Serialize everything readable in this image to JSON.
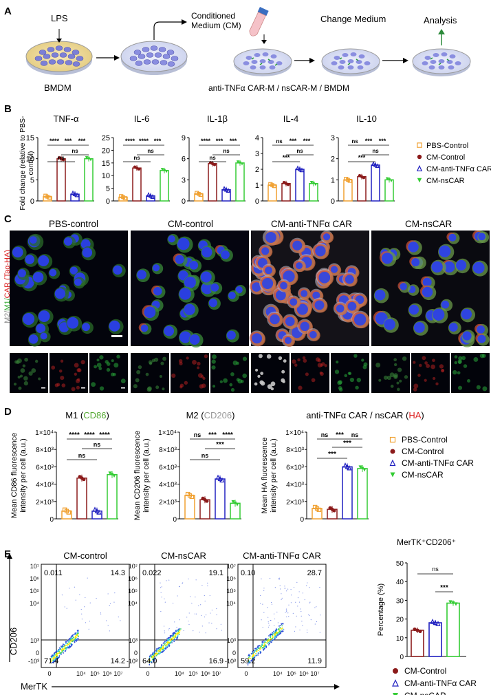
{
  "panelA": {
    "letter": "A",
    "lps": "LPS",
    "bmdm": "BMDM",
    "cm": "Conditioned Medium (CM)",
    "change_medium": "Change Medium",
    "analysis": "Analysis",
    "cell_types": "anti-TNFα CAR-M / nsCAR-M / BMDM"
  },
  "panelB": {
    "letter": "B",
    "ylabel": "Fold change (relative to PBS-control)",
    "groups_colors": [
      "#f0a030",
      "#8b1a1a",
      "#2020c0",
      "#33cc33"
    ],
    "legend": [
      "PBS-Control",
      "CM-Control",
      "CM-anti-TNFα CAR",
      "CM-nsCAR"
    ],
    "charts": [
      {
        "title": "TNF-α",
        "ylim": [
          0,
          15
        ],
        "ticks": [
          "0",
          "5",
          "10",
          "15"
        ],
        "values": [
          1,
          10,
          1.6,
          10
        ],
        "sig": [
          "****",
          "***",
          "***",
          "ns",
          "ns"
        ]
      },
      {
        "title": "IL-6",
        "ylim": [
          0,
          25
        ],
        "ticks": [
          "0",
          "5",
          "10",
          "15",
          "20",
          "25"
        ],
        "values": [
          1.5,
          13,
          2,
          12
        ],
        "sig": [
          "****",
          "****",
          "***",
          "ns",
          "ns"
        ]
      },
      {
        "title": "IL-1β",
        "ylim": [
          0,
          9
        ],
        "ticks": [
          "0",
          "3",
          "6",
          "9"
        ],
        "values": [
          1,
          5.3,
          1.6,
          5.4
        ],
        "sig": [
          "****",
          "***",
          "***",
          "ns",
          "ns"
        ]
      },
      {
        "title": "IL-4",
        "ylim": [
          0,
          4
        ],
        "ticks": [
          "0",
          "1",
          "2",
          "3",
          "4"
        ],
        "values": [
          1,
          1.1,
          2,
          1.1
        ],
        "sig": [
          "ns",
          "***",
          "***",
          "***",
          "ns"
        ]
      },
      {
        "title": "IL-10",
        "ylim": [
          0,
          3
        ],
        "ticks": [
          "0",
          "1",
          "2",
          "3"
        ],
        "values": [
          1,
          1.15,
          1.7,
          1
        ],
        "sig": [
          "ns",
          "***",
          "***",
          "***",
          "ns"
        ]
      }
    ]
  },
  "panelC": {
    "letter": "C",
    "titles": [
      "PBS-control",
      "CM-control",
      "CM-anti-TNFα CAR",
      "CM-nsCAR"
    ],
    "side_m2": "M2/",
    "side_m1": "M1/",
    "side_car": "CAR (Tag-HA)"
  },
  "panelD": {
    "letter": "D",
    "legend": [
      "PBS-Control",
      "CM-Control",
      "CM-anti-TNFα CAR",
      "CM-nsCAR"
    ],
    "charts": [
      {
        "title_a": "M1 (",
        "title_b": "CD86",
        "title_c": ")",
        "title_color": "#55aa33",
        "ylabel1": "Mean CD86 fluorescence",
        "ylabel2": "intensity per cell (a.u.)",
        "ticks": [
          "0",
          "2×10³",
          "4×10³",
          "6×10³",
          "8×10³",
          "1×10⁴"
        ],
        "values": [
          900,
          4700,
          900,
          5100
        ],
        "sig": [
          "****",
          "****",
          "****",
          "ns",
          "ns"
        ]
      },
      {
        "title_a": "M2 (",
        "title_b": "CD206",
        "title_c": ")",
        "title_color": "#999999",
        "ylabel1": "Mean CD206 fluorescence",
        "ylabel2": "intensity per cell (a.u.)",
        "ticks": [
          "0",
          "2×10³",
          "4×10³",
          "6×10³",
          "8×10³",
          "1×10⁴"
        ],
        "values": [
          2700,
          2200,
          4600,
          1800
        ],
        "sig": [
          "ns",
          "***",
          "****",
          "***",
          "ns"
        ]
      },
      {
        "title_a": "anti-TNFα CAR / nsCAR (",
        "title_b": "HA",
        "title_c": ")",
        "title_color": "#dd2222",
        "ylabel1": "Mean HA fluorescence",
        "ylabel2": "intensity per cell (a.u.)",
        "ticks": [
          "0",
          "2×10³",
          "4×10³",
          "6×10³",
          "8×10³",
          "1×10⁴"
        ],
        "values": [
          1200,
          1100,
          6000,
          5800
        ],
        "sig": [
          "ns",
          "***",
          "ns",
          "***",
          "***"
        ]
      }
    ]
  },
  "panelE": {
    "letter": "E",
    "ylabel": "CD206",
    "xlabel": "MerTK",
    "plots": [
      {
        "title": "CM-control",
        "ul": "0.011",
        "ur": "14.3",
        "ll": "71.4",
        "lr": "14.2"
      },
      {
        "title": "CM-nsCAR",
        "ul": "0.022",
        "ur": "19.1",
        "ll": "64.0",
        "lr": "16.9"
      },
      {
        "title": "CM-anti-TNFα CAR",
        "ul": "0.10",
        "ur": "28.7",
        "ll": "59.2",
        "lr": "11.9"
      }
    ],
    "yticks_left": [
      "10⁷",
      "10⁶",
      "10⁵",
      "10⁴",
      "10³",
      "0",
      "-10³"
    ],
    "xticks": [
      "0",
      "10⁴",
      "10⁵",
      "10⁶",
      "10⁷"
    ],
    "bar": {
      "title": "MerTK⁺CD206⁺",
      "ylabel": "Percentage (%)",
      "ticks": [
        "0",
        "10",
        "20",
        "30",
        "40",
        "50"
      ],
      "values": [
        14,
        18,
        28.5
      ],
      "sig": [
        "ns",
        "***"
      ],
      "colors": [
        "#8b1a1a",
        "#2020c0",
        "#33cc33"
      ]
    },
    "legend": [
      "CM-Control",
      "CM-anti-TNFα CAR",
      "CM-nsCAR"
    ]
  }
}
